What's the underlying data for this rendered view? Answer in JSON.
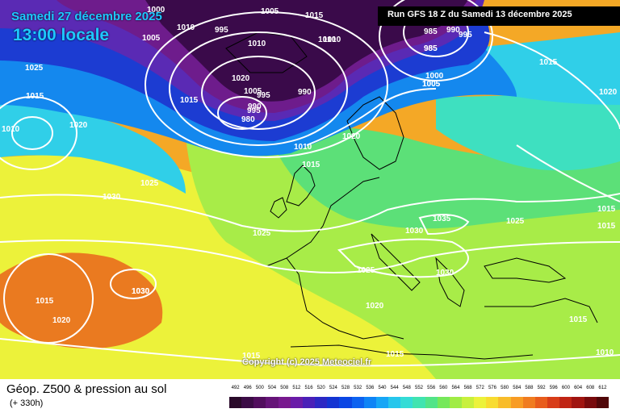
{
  "header": {
    "date_line": "Samedi 27 décembre 2025",
    "time_line": "13:00 locale",
    "run_info": "Run GFS 18 Z du Samedi 13 décembre 2025"
  },
  "footer": {
    "title": "Géop. Z500 & pression au sol",
    "forecast_hour": "(+ 330h)",
    "copyright": "Copyright (c) 2025 Meteociel.fr"
  },
  "legend": {
    "levels": [
      "492",
      "496",
      "500",
      "504",
      "508",
      "512",
      "516",
      "520",
      "524",
      "528",
      "532",
      "536",
      "540",
      "544",
      "548",
      "552",
      "556",
      "560",
      "564",
      "568",
      "572",
      "576",
      "580",
      "584",
      "588",
      "592",
      "596",
      "600",
      "604",
      "608",
      "612"
    ],
    "colors": [
      "#2a0a2a",
      "#3c0c46",
      "#520e5e",
      "#661478",
      "#78198e",
      "#6a1ba8",
      "#4a20b8",
      "#2c28c4",
      "#1434d2",
      "#0a46e4",
      "#0c62f0",
      "#0e84f6",
      "#16a6f6",
      "#26c6ec",
      "#34dcd6",
      "#40e4b0",
      "#52e488",
      "#76e85a",
      "#a0ec44",
      "#c8f03c",
      "#ecf23a",
      "#f8dc30",
      "#f8bc2a",
      "#f89c24",
      "#f07c20",
      "#e85c1c",
      "#d83c18",
      "#c02414",
      "#a01410",
      "#780a0c",
      "#500608"
    ]
  },
  "map": {
    "colors": {
      "deep_purple": "#3a0a4a",
      "purple": "#6e1c8c",
      "violet": "#5a2ab4",
      "blue": "#1c3cd2",
      "light_blue": "#1488ee",
      "cyan": "#30cfe8",
      "teal": "#3ee0c0",
      "green": "#5ce078",
      "lime": "#a8ec48",
      "yellow": "#ecf23a",
      "orange": "#f4a826",
      "dark_orange": "#ea7a20"
    },
    "isobar_labels": [
      "1000",
      "1005",
      "1010",
      "995",
      "1015",
      "1005",
      "1010",
      "1020",
      "1010",
      "1005",
      "995",
      "985",
      "990",
      "1010",
      "985",
      "990",
      "995",
      "1025",
      "1015",
      "1020",
      "1010",
      "1015",
      "1005",
      "995",
      "990",
      "980",
      "1015",
      "1020",
      "1010",
      "1015",
      "1030",
      "1025",
      "1025",
      "1035",
      "1030",
      "1025",
      "1030",
      "1030",
      "1025",
      "1015",
      "1015",
      "1020",
      "1020",
      "1015",
      "1015",
      "1015",
      "1010",
      "1015",
      "1005",
      "1000",
      "985",
      "1020",
      "1030"
    ]
  }
}
